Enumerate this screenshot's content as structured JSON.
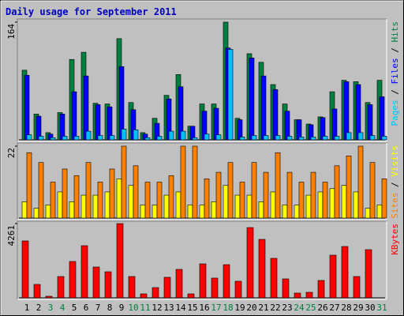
{
  "chart_data": [
    {
      "type": "bar",
      "title": "Daily usage for September 2011",
      "ylim": [
        0,
        164
      ],
      "yticks": [
        164
      ],
      "series": [
        {
          "name": "Hits",
          "color": "#008040",
          "values": [
            97,
            36,
            10,
            38,
            112,
            122,
            51,
            50,
            141,
            52,
            10,
            30,
            62,
            91,
            19,
            50,
            50,
            164,
            30,
            120,
            108,
            77,
            50,
            28,
            22,
            32,
            67,
            83,
            81,
            52,
            83
          ]
        },
        {
          "name": "Files",
          "color": "#0000ff",
          "values": [
            90,
            33,
            8,
            36,
            67,
            89,
            49,
            46,
            102,
            42,
            8,
            23,
            57,
            74,
            19,
            40,
            44,
            128,
            28,
            114,
            89,
            70,
            40,
            28,
            21,
            31,
            43,
            81,
            77,
            49,
            60
          ]
        },
        {
          "name": "Pages",
          "color": "#00c0ff",
          "values": [
            7,
            5,
            3,
            5,
            5,
            12,
            6,
            6,
            15,
            14,
            3,
            5,
            12,
            12,
            3,
            8,
            7,
            126,
            4,
            6,
            6,
            6,
            5,
            4,
            4,
            5,
            5,
            10,
            10,
            6,
            5
          ]
        }
      ]
    },
    {
      "type": "bar",
      "ylim": [
        0,
        22
      ],
      "yticks": [
        22
      ],
      "series": [
        {
          "name": "Visits",
          "color": "#ffff00",
          "values": [
            5,
            3,
            4,
            8,
            5,
            7,
            7,
            8,
            12,
            10,
            4,
            4,
            7,
            8,
            4,
            4,
            5,
            10,
            7,
            7,
            5,
            8,
            4,
            4,
            7,
            8,
            9,
            10,
            8,
            3,
            4
          ]
        },
        {
          "name": "Sites",
          "color": "#ff8000",
          "values": [
            20,
            17,
            11,
            15,
            13,
            17,
            11,
            15,
            22,
            16,
            11,
            11,
            13,
            22,
            22,
            12,
            14,
            17,
            11,
            17,
            14,
            20,
            14,
            11,
            14,
            11,
            16,
            19,
            22,
            17,
            12
          ]
        }
      ]
    },
    {
      "type": "bar",
      "ylim": [
        0,
        4261
      ],
      "yticks": [
        4261
      ],
      "series": [
        {
          "name": "KBytes",
          "color": "#ff0000",
          "values": [
            3264,
            771,
            91,
            1224,
            2085,
            2992,
            1768,
            1496,
            4261,
            1224,
            227,
            589,
            1179,
            1632,
            227,
            1949,
            1133,
            1904,
            952,
            4034,
            3354,
            2267,
            1088,
            272,
            317,
            997,
            2448,
            2947,
            1224,
            2765,
            0
          ]
        }
      ],
      "categories": [
        "1",
        "2",
        "3",
        "4",
        "5",
        "6",
        "7",
        "8",
        "9",
        "10",
        "11",
        "12",
        "13",
        "14",
        "15",
        "16",
        "17",
        "18",
        "19",
        "20",
        "21",
        "22",
        "23",
        "24",
        "25",
        "26",
        "27",
        "28",
        "29",
        "30",
        "31"
      ],
      "category_colors": [
        "#000000",
        "#000000",
        "#008040",
        "#008040",
        "#000000",
        "#000000",
        "#000000",
        "#000000",
        "#000000",
        "#008040",
        "#008040",
        "#000000",
        "#000000",
        "#000000",
        "#000000",
        "#000000",
        "#008040",
        "#008040",
        "#000000",
        "#000000",
        "#000000",
        "#000000",
        "#000000",
        "#008040",
        "#008040",
        "#000000",
        "#000000",
        "#000000",
        "#000000",
        "#000000",
        "#008040"
      ]
    }
  ],
  "legend_separator": " / "
}
